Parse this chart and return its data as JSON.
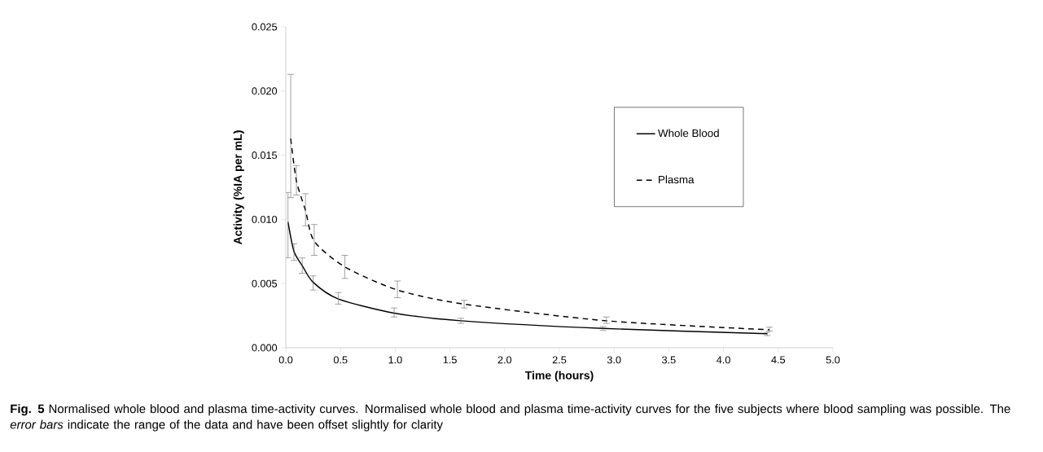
{
  "chart_data": {
    "type": "line",
    "xlabel": "Time (hours)",
    "ylabel": "Activity (%IA per mL)",
    "xlim": [
      0,
      5
    ],
    "ylim": [
      0,
      0.025
    ],
    "xticks": [
      {
        "value": 0,
        "label": "0.0"
      },
      {
        "value": 0.5,
        "label": "0.5"
      },
      {
        "value": 1,
        "label": "1.0"
      },
      {
        "value": 1.5,
        "label": "1.5"
      },
      {
        "value": 2,
        "label": "2.0"
      },
      {
        "value": 2.5,
        "label": "2.5"
      },
      {
        "value": 3,
        "label": "3.0"
      },
      {
        "value": 3.5,
        "label": "3.5"
      },
      {
        "value": 4,
        "label": "4.0"
      },
      {
        "value": 4.5,
        "label": "4.5"
      },
      {
        "value": 5,
        "label": "5.0"
      }
    ],
    "yticks": [
      {
        "value": 0,
        "label": "0.000"
      },
      {
        "value": 0.005,
        "label": "0.005"
      },
      {
        "value": 0.01,
        "label": "0.010"
      },
      {
        "value": 0.015,
        "label": "0.015"
      },
      {
        "value": 0.02,
        "label": "0.020"
      },
      {
        "value": 0.025,
        "label": "0.025"
      }
    ],
    "grid": false,
    "legend": "right",
    "marker": "none",
    "series": [
      {
        "name": "Whole Blood",
        "color": "#000000",
        "line_style": "solid",
        "x": [
          0.02,
          0.075,
          0.15,
          0.25,
          0.48,
          0.99,
          1.6,
          2.9,
          4.4
        ],
        "values": [
          0.0098,
          0.0075,
          0.0064,
          0.0051,
          0.0038,
          0.0027,
          0.0021,
          0.0015,
          0.0011
        ],
        "errors": [
          [
            0.007,
            0.0121
          ],
          [
            0.0068,
            0.0081
          ],
          [
            0.0058,
            0.007
          ],
          [
            0.0045,
            0.0056
          ],
          [
            0.0034,
            0.0043
          ],
          [
            0.0024,
            0.0031
          ],
          [
            0.0019,
            0.0023
          ],
          [
            0.00135,
            0.00165
          ],
          [
            0.00095,
            0.0012
          ]
        ]
      },
      {
        "name": "Plasma",
        "color": "#000000",
        "line_style": "dashed",
        "x": [
          0.045,
          0.097,
          0.18,
          0.26,
          0.54,
          1.02,
          1.63,
          2.93,
          4.42
        ],
        "values": [
          0.0163,
          0.013,
          0.0107,
          0.0083,
          0.0063,
          0.0045,
          0.0034,
          0.0021,
          0.0014
        ],
        "errors": [
          [
            0.0117,
            0.0213
          ],
          [
            0.0119,
            0.0142
          ],
          [
            0.0095,
            0.012
          ],
          [
            0.0072,
            0.0096
          ],
          [
            0.0054,
            0.0072
          ],
          [
            0.0039,
            0.0052
          ],
          [
            0.0031,
            0.0037
          ],
          [
            0.0019,
            0.0024
          ],
          [
            0.0013,
            0.0016
          ]
        ]
      }
    ],
    "annotations": [
      "**Fig. 5** Normalised whole blood and plasma time-activity curves. Normalised whole blood and plasma time-activity curves for the five subjects where blood sampling was possible. The *error bars* indicate the range of the data and have been offset slightly for clarity"
    ]
  }
}
